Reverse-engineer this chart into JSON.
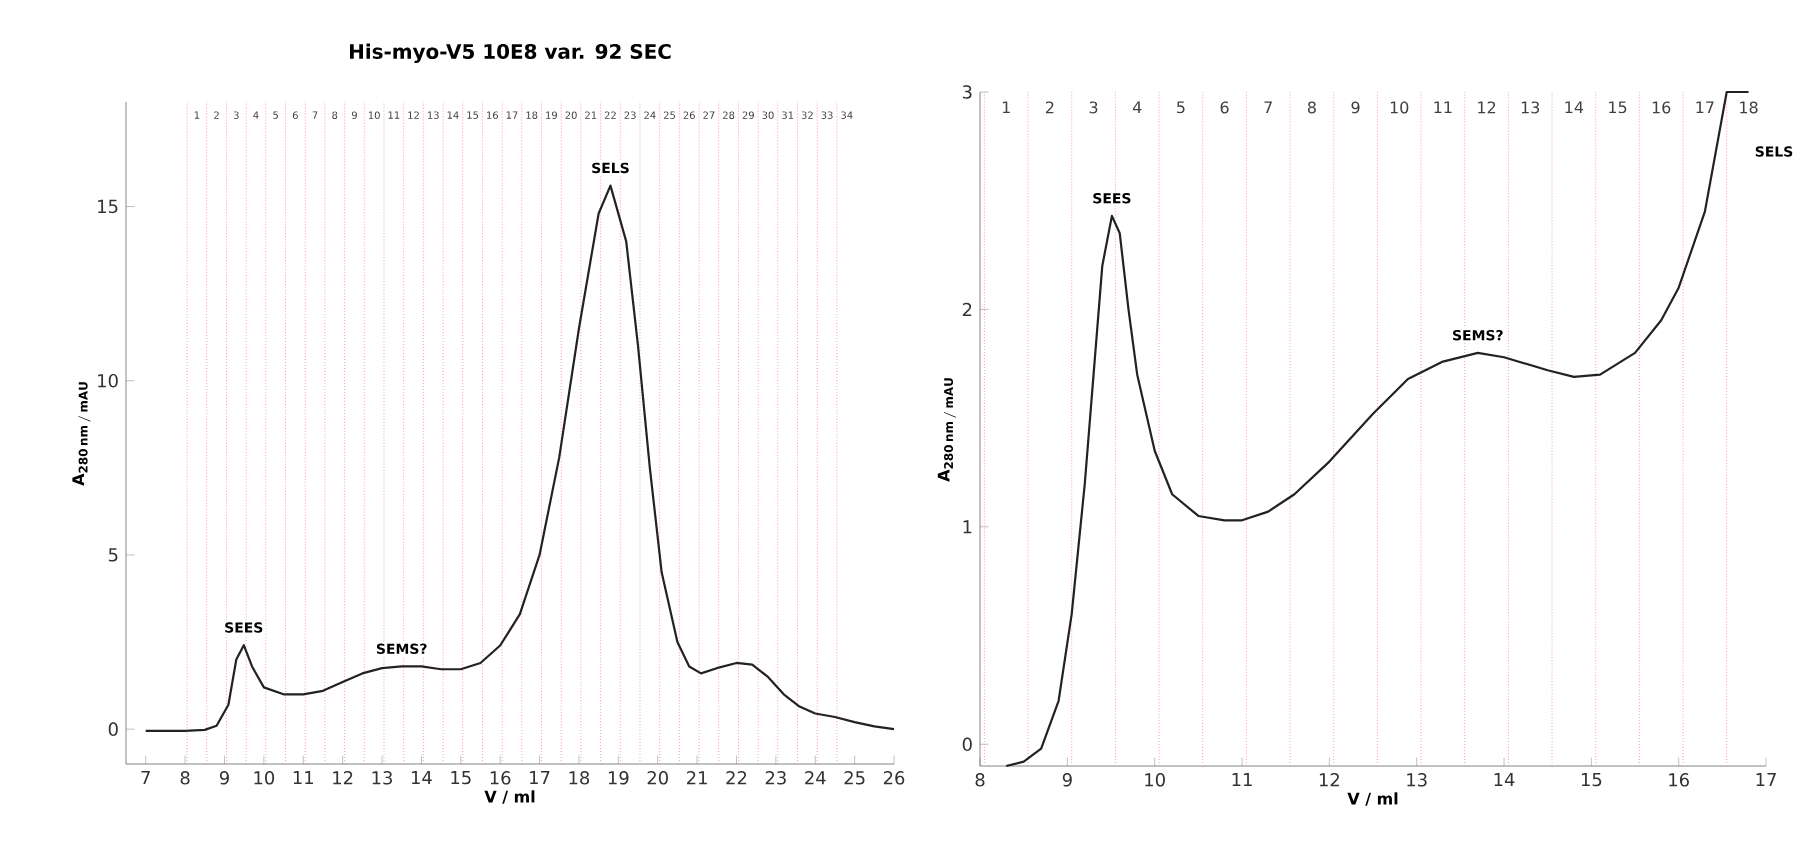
{
  "chart_data": [
    {
      "type": "line",
      "title": "His-myo-V5 10E8 var. 92 SEC",
      "xlabel": "V / ml",
      "ylabel": "\\mathbf{A}_{\\mathbf{280\\,nm\\,/\\,mAU}}",
      "x": [
        7,
        7.5,
        8,
        8.5,
        8.8,
        9.1,
        9.3,
        9.49,
        9.7,
        10.0,
        10.5,
        11,
        11.5,
        12,
        12.5,
        13,
        13.5,
        14,
        14.5,
        15,
        15.5,
        16,
        16.5,
        17,
        17.5,
        18,
        18.5,
        18.8,
        19.2,
        19.5,
        19.8,
        20.1,
        20.5,
        20.8,
        21.1,
        21.5,
        22,
        22.4,
        22.8,
        23.2,
        23.6,
        24,
        24.5,
        25,
        25.5,
        26
      ],
      "series": [
        {
          "color": "#222222",
          "values": [
            -0.05,
            -0.05,
            -0.05,
            -0.02,
            0.1,
            0.7,
            2.0,
            2.41,
            1.8,
            1.2,
            1.0,
            1.0,
            1.1,
            1.35,
            1.6,
            1.75,
            1.8,
            1.8,
            1.72,
            1.72,
            1.9,
            2.4,
            3.3,
            5,
            7.8,
            11.5,
            14.8,
            15.6,
            14,
            11,
            7.5,
            4.5,
            2.5,
            1.8,
            1.6,
            1.75,
            1.9,
            1.85,
            1.5,
            1.0,
            0.65,
            0.45,
            0.35,
            0.2,
            0.08,
            0.0
          ]
        }
      ],
      "xlim": [
        6.5,
        26
      ],
      "ylim": [
        -1,
        18
      ],
      "xticks": [
        7,
        8,
        9,
        10,
        11,
        12,
        13,
        14,
        15,
        16,
        17,
        18,
        19,
        20,
        21,
        22,
        23,
        24,
        25,
        26
      ],
      "yticks": [
        0,
        5,
        10,
        15
      ],
      "annotations": [
        {
          "text": "SEES",
          "x": 9.49,
          "y": 2.41
        },
        {
          "text": "SEMS?",
          "x": 13.5,
          "y": 1.8
        },
        {
          "text": "SELS",
          "x": 18.8,
          "y": 15.6
        },
        "1",
        "2",
        "3",
        "4",
        "5",
        "6",
        "7",
        "8",
        "9",
        "10",
        "11",
        "12",
        "13",
        "14",
        "15",
        "16",
        "17",
        "18",
        "19",
        "20",
        "21",
        "22",
        "23",
        "24",
        "25",
        "26",
        "27",
        "28",
        "29",
        "30",
        "31",
        "32",
        "33",
        "34"
      ],
      "ref_lines": [
        {
          "axis": "x",
          "value": 8.05,
          "color": "#ff9999",
          "line_style": "dotted"
        },
        {
          "axis": "x",
          "value": 8.55,
          "color": "#ff9999",
          "line_style": "dotted"
        },
        {
          "axis": "x",
          "value": 9.05,
          "color": "#ff9999",
          "line_style": "dotted"
        },
        {
          "axis": "x",
          "value": 9.55,
          "color": "#ff9999",
          "line_style": "dotted"
        },
        {
          "axis": "x",
          "value": 10.05,
          "color": "#ff9999",
          "line_style": "dotted"
        },
        {
          "axis": "x",
          "value": 10.55,
          "color": "#ff9999",
          "line_style": "dotted"
        },
        {
          "axis": "x",
          "value": 11.05,
          "color": "#ff9999",
          "line_style": "dotted"
        },
        {
          "axis": "x",
          "value": 11.55,
          "color": "#ff9999",
          "line_style": "dotted"
        },
        {
          "axis": "x",
          "value": 12.05,
          "color": "#ff9999",
          "line_style": "dotted"
        },
        {
          "axis": "x",
          "value": 12.55,
          "color": "#ff9999",
          "line_style": "dotted"
        },
        {
          "axis": "x",
          "value": 13.05,
          "color": "#ff9999",
          "line_style": "dotted"
        },
        {
          "axis": "x",
          "value": 13.55,
          "color": "#ff9999",
          "line_style": "dotted"
        },
        {
          "axis": "x",
          "value": 14.05,
          "color": "#ff9999",
          "line_style": "dotted"
        },
        {
          "axis": "x",
          "value": 14.55,
          "color": "#ff9999",
          "line_style": "dotted"
        },
        {
          "axis": "x",
          "value": 15.05,
          "color": "#ff9999",
          "line_style": "dotted"
        },
        {
          "axis": "x",
          "value": 15.55,
          "color": "#ff9999",
          "line_style": "dotted"
        },
        {
          "axis": "x",
          "value": 16.05,
          "color": "#ff9999",
          "line_style": "dotted"
        },
        {
          "axis": "x",
          "value": 16.55,
          "color": "#ff9999",
          "line_style": "dotted"
        },
        {
          "axis": "x",
          "value": 17.05,
          "color": "#ff9999",
          "line_style": "dotted"
        },
        {
          "axis": "x",
          "value": 17.55,
          "color": "#ff9999",
          "line_style": "dotted"
        },
        {
          "axis": "x",
          "value": 18.05,
          "color": "#ff9999",
          "line_style": "dotted"
        },
        {
          "axis": "x",
          "value": 18.55,
          "color": "#ff9999",
          "line_style": "dotted"
        },
        {
          "axis": "x",
          "value": 19.05,
          "color": "#ff9999",
          "line_style": "dotted"
        },
        {
          "axis": "x",
          "value": 19.55,
          "color": "#ff9999",
          "line_style": "dotted"
        },
        {
          "axis": "x",
          "value": 20.05,
          "color": "#ff9999",
          "line_style": "dotted"
        },
        {
          "axis": "x",
          "value": 20.55,
          "color": "#ff9999",
          "line_style": "dotted"
        },
        {
          "axis": "x",
          "value": 21.05,
          "color": "#ff9999",
          "line_style": "dotted"
        },
        {
          "axis": "x",
          "value": 21.55,
          "color": "#ff9999",
          "line_style": "dotted"
        },
        {
          "axis": "x",
          "value": 22.05,
          "color": "#ff9999",
          "line_style": "dotted"
        },
        {
          "axis": "x",
          "value": 22.55,
          "color": "#ff9999",
          "line_style": "dotted"
        },
        {
          "axis": "x",
          "value": 23.05,
          "color": "#ff9999",
          "line_style": "dotted"
        },
        {
          "axis": "x",
          "value": 23.55,
          "color": "#ff9999",
          "line_style": "dotted"
        },
        {
          "axis": "x",
          "value": 24.05,
          "color": "#ff9999",
          "line_style": "dotted"
        },
        {
          "axis": "x",
          "value": 24.55,
          "color": "#ff9999",
          "line_style": "dotted"
        }
      ]
    },
    {
      "type": "line",
      "xlabel": "V / ml",
      "ylabel": "\\mathbf{A}_{\\mathbf{280\\,nm\\,/\\,mAU}}",
      "x": [
        8.3,
        8.5,
        8.7,
        8.9,
        9.05,
        9.2,
        9.3,
        9.4,
        9.51,
        9.6,
        9.7,
        9.8,
        10.0,
        10.2,
        10.5,
        10.8,
        11.0,
        11.3,
        11.6,
        12.0,
        12.5,
        12.9,
        13.3,
        13.7,
        14.0,
        14.5,
        14.8,
        15.1,
        15.5,
        15.8,
        16.0,
        16.3,
        16.55,
        16.8
      ],
      "series": [
        {
          "color": "#222222",
          "values": [
            -0.1,
            -0.08,
            -0.02,
            0.2,
            0.6,
            1.2,
            1.7,
            2.2,
            2.43,
            2.35,
            2.0,
            1.7,
            1.35,
            1.15,
            1.05,
            1.03,
            1.03,
            1.07,
            1.15,
            1.3,
            1.52,
            1.68,
            1.76,
            1.8,
            1.78,
            1.72,
            1.69,
            1.7,
            1.8,
            1.95,
            2.1,
            2.45,
            3.0,
            3.0
          ]
        }
      ],
      "xlim": [
        8,
        17
      ],
      "ylim": [
        -0.1,
        3
      ],
      "xticks": [
        8,
        9,
        10,
        11,
        12,
        13,
        14,
        15,
        16,
        17
      ],
      "yticks": [
        0,
        1,
        2,
        3
      ],
      "annotations": [
        {
          "text": "SEES",
          "x": 9.51,
          "y": 2.43
        },
        {
          "text": "SEMS?",
          "x": 13.7,
          "y": 1.8
        },
        "SELS",
        "1",
        "2",
        "3",
        "4",
        "5",
        "6",
        "7",
        "8",
        "9",
        "10",
        "11",
        "12",
        "13",
        "14",
        "15",
        "16",
        "17",
        "18"
      ],
      "ref_lines": [
        {
          "axis": "x",
          "value": 8.05,
          "color": "#ff9999",
          "line_style": "dotted"
        },
        {
          "axis": "x",
          "value": 8.55,
          "color": "#ff9999",
          "line_style": "dotted"
        },
        {
          "axis": "x",
          "value": 9.05,
          "color": "#ff9999",
          "line_style": "dotted"
        },
        {
          "axis": "x",
          "value": 9.55,
          "color": "#ff9999",
          "line_style": "dotted"
        },
        {
          "axis": "x",
          "value": 10.05,
          "color": "#ff9999",
          "line_style": "dotted"
        },
        {
          "axis": "x",
          "value": 10.55,
          "color": "#ff9999",
          "line_style": "dotted"
        },
        {
          "axis": "x",
          "value": 11.05,
          "color": "#ff9999",
          "line_style": "dotted"
        },
        {
          "axis": "x",
          "value": 11.55,
          "color": "#ff9999",
          "line_style": "dotted"
        },
        {
          "axis": "x",
          "value": 12.05,
          "color": "#ff9999",
          "line_style": "dotted"
        },
        {
          "axis": "x",
          "value": 12.55,
          "color": "#ff9999",
          "line_style": "dotted"
        },
        {
          "axis": "x",
          "value": 13.05,
          "color": "#ff9999",
          "line_style": "dotted"
        },
        {
          "axis": "x",
          "value": 13.55,
          "color": "#ff9999",
          "line_style": "dotted"
        },
        {
          "axis": "x",
          "value": 14.05,
          "color": "#ff9999",
          "line_style": "dotted"
        },
        {
          "axis": "x",
          "value": 14.55,
          "color": "#ff9999",
          "line_style": "dotted"
        },
        {
          "axis": "x",
          "value": 15.05,
          "color": "#ff9999",
          "line_style": "dotted"
        },
        {
          "axis": "x",
          "value": 15.55,
          "color": "#ff9999",
          "line_style": "dotted"
        },
        {
          "axis": "x",
          "value": 16.05,
          "color": "#ff9999",
          "line_style": "dotted"
        },
        {
          "axis": "x",
          "value": 16.55,
          "color": "#ff9999",
          "line_style": "dotted"
        }
      ]
    }
  ]
}
